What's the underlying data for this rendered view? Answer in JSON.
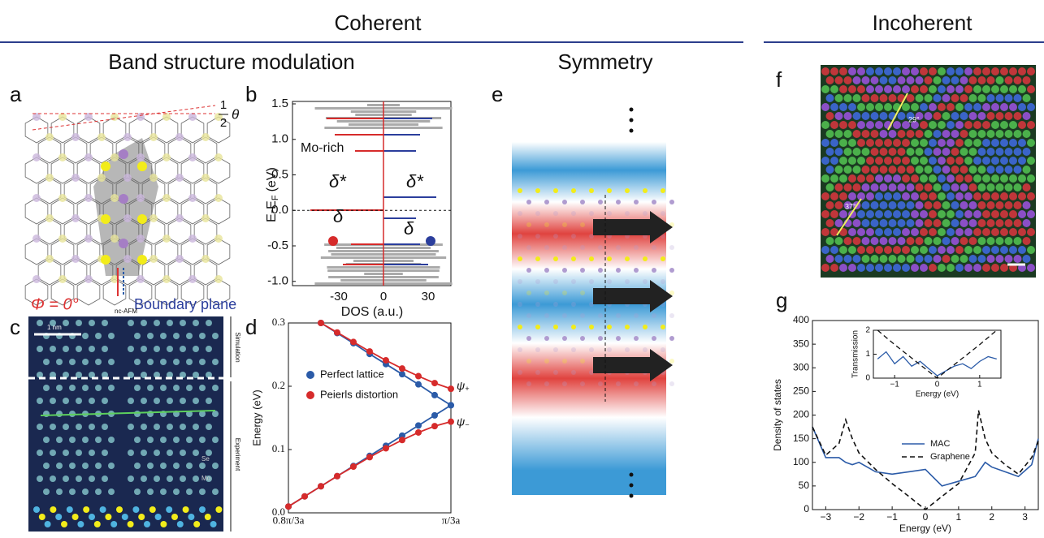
{
  "header": {
    "coherent": "Coherent",
    "incoherent": "Incoherent"
  },
  "sections": {
    "band": "Band structure modulation",
    "symmetry": "Symmetry"
  },
  "panels": {
    "a": {
      "letter": "a",
      "phi": "Φ = 0°",
      "boundary": "Boundary plane",
      "angle_num": "1",
      "angle_den": "2",
      "angle_sym": "θ"
    },
    "b": {
      "letter": "b",
      "ylabel": "E-E",
      "ylabel_sub": "F",
      "ylabel_tail": "(eV)",
      "xlabel": "DOS (a.u.)",
      "yticks": [
        "1.5",
        "1.0",
        "0.5",
        "0.0",
        "-0.5",
        "-1.0"
      ],
      "xticks": [
        "-30",
        "0",
        "30"
      ],
      "mo_rich": "Mo-rich",
      "delta_star": "δ*",
      "delta": "δ"
    },
    "c": {
      "letter": "c",
      "mode": "nc-AFM",
      "scale": "1 nm",
      "simulation": "Simulation",
      "experiment": "Experiment",
      "se": "Se",
      "mo": "Mo"
    },
    "d": {
      "letter": "d",
      "type": "line",
      "ylabel": "Energy (eV)",
      "xlim": [
        0.8,
        1.0
      ],
      "ylim": [
        0,
        0.3
      ],
      "xticks": [
        {
          "value": 0.8,
          "label": "0.8π/3a"
        },
        {
          "value": 1.0,
          "label": "π/3a"
        }
      ],
      "yticks": [
        {
          "value": 0,
          "label": "0.0"
        },
        0.1,
        0.2,
        0.3
      ],
      "psi": "ψ",
      "psi_plus": "+",
      "psi_minus": "−",
      "series": [
        {
          "name": "Perfect lattice",
          "color": "#2b5ba8",
          "lines": [
            {
              "x": [
                0.84,
                0.86,
                0.88,
                0.9,
                0.92,
                0.94,
                0.96,
                0.98,
                1.0
              ],
              "values": [
                0.3,
                0.284,
                0.268,
                0.251,
                0.235,
                0.219,
                0.203,
                0.186,
                0.17
              ]
            },
            {
              "x": [
                0.8,
                0.82,
                0.84,
                0.86,
                0.88,
                0.9,
                0.92,
                0.94,
                0.96,
                0.98,
                1.0
              ],
              "values": [
                0.01,
                0.026,
                0.042,
                0.058,
                0.074,
                0.09,
                0.106,
                0.122,
                0.138,
                0.154,
                0.17
              ]
            }
          ]
        },
        {
          "name": "Peierls distortion",
          "color": "#d62b2b",
          "lines": [
            {
              "x": [
                0.84,
                0.86,
                0.88,
                0.9,
                0.92,
                0.94,
                0.96,
                0.98,
                1.0
              ],
              "values": [
                0.3,
                0.285,
                0.27,
                0.255,
                0.241,
                0.228,
                0.216,
                0.205,
                0.196
              ]
            },
            {
              "x": [
                0.8,
                0.82,
                0.84,
                0.86,
                0.88,
                0.9,
                0.92,
                0.94,
                0.96,
                0.98,
                1.0
              ],
              "values": [
                0.01,
                0.026,
                0.042,
                0.058,
                0.073,
                0.088,
                0.102,
                0.115,
                0.127,
                0.137,
                0.144
              ]
            }
          ]
        }
      ]
    },
    "e": {
      "letter": "e"
    },
    "f": {
      "letter": "f",
      "angles": [
        "29°",
        "37°"
      ]
    },
    "g": {
      "letter": "g",
      "type": "line",
      "ylabel": "Density of states",
      "xlabel": "Energy (eV)",
      "xlim": [
        -3.4,
        3.4
      ],
      "ylim": [
        0,
        400
      ],
      "xticks": [
        {
          "value": -3,
          "label": "−3"
        },
        {
          "value": -2,
          "label": "−2"
        },
        {
          "value": -1,
          "label": "−1"
        },
        0,
        1,
        2,
        3
      ],
      "yticks": [
        0,
        50,
        100,
        150,
        200,
        250,
        300,
        350,
        400
      ],
      "series": [
        {
          "name": "MAC",
          "color": "#2b5ba8",
          "lines": [
            {
              "x": [
                -3.4,
                -3,
                -2.6,
                -2.4,
                -2.2,
                -2,
                -1.5,
                -1,
                -0.5,
                0,
                0.5,
                1,
                1.5,
                1.6,
                1.8,
                2,
                2.4,
                2.8,
                3.2,
                3.4
              ],
              "values": [
                175,
                110,
                110,
                100,
                95,
                100,
                80,
                75,
                80,
                85,
                50,
                60,
                70,
                80,
                100,
                90,
                80,
                70,
                95,
                150
              ]
            }
          ]
        },
        {
          "name": "Graphene",
          "color": "#111111",
          "dash": true,
          "lines": [
            {
              "x": [
                -3.4,
                -3,
                -2.6,
                -2.4,
                -2.2,
                -2,
                -1.5,
                -1,
                -0.5,
                0,
                0.5,
                1,
                1.5,
                1.6,
                1.8,
                2,
                2.4,
                2.8,
                3.2,
                3.4
              ],
              "values": [
                175,
                115,
                140,
                190,
                150,
                120,
                85,
                55,
                28,
                0,
                28,
                55,
                120,
                210,
                150,
                120,
                95,
                75,
                110,
                145
              ]
            }
          ]
        }
      ],
      "inset": {
        "type": "line",
        "ylabel": "Transmission",
        "xlabel": "Energy (eV)",
        "xlim": [
          -1.5,
          1.5
        ],
        "ylim": [
          0,
          2
        ],
        "xticks": [
          {
            "value": -1,
            "label": "−1"
          },
          0,
          1
        ],
        "yticks": [
          0,
          1,
          2
        ],
        "series": [
          {
            "color": "#2b5ba8",
            "lines": [
              {
                "x": [
                  -1.4,
                  -1.2,
                  -1,
                  -0.8,
                  -0.6,
                  -0.4,
                  -0.2,
                  0,
                  0.2,
                  0.4,
                  0.6,
                  0.8,
                  1,
                  1.2,
                  1.4
                ],
                "values": [
                  0.8,
                  1.1,
                  0.6,
                  0.9,
                  0.5,
                  0.7,
                  0.4,
                  0.1,
                  0.3,
                  0.5,
                  0.6,
                  0.4,
                  0.7,
                  0.9,
                  0.8
                ]
              }
            ]
          },
          {
            "color": "#111111",
            "dash": true,
            "lines": [
              {
                "x": [
                  -1.4,
                  -1,
                  -0.5,
                  0,
                  0.5,
                  1,
                  1.4
                ],
                "values": [
                  2,
                  1.4,
                  0.7,
                  0,
                  0.7,
                  1.4,
                  2
                ]
              }
            ]
          }
        ]
      }
    }
  }
}
